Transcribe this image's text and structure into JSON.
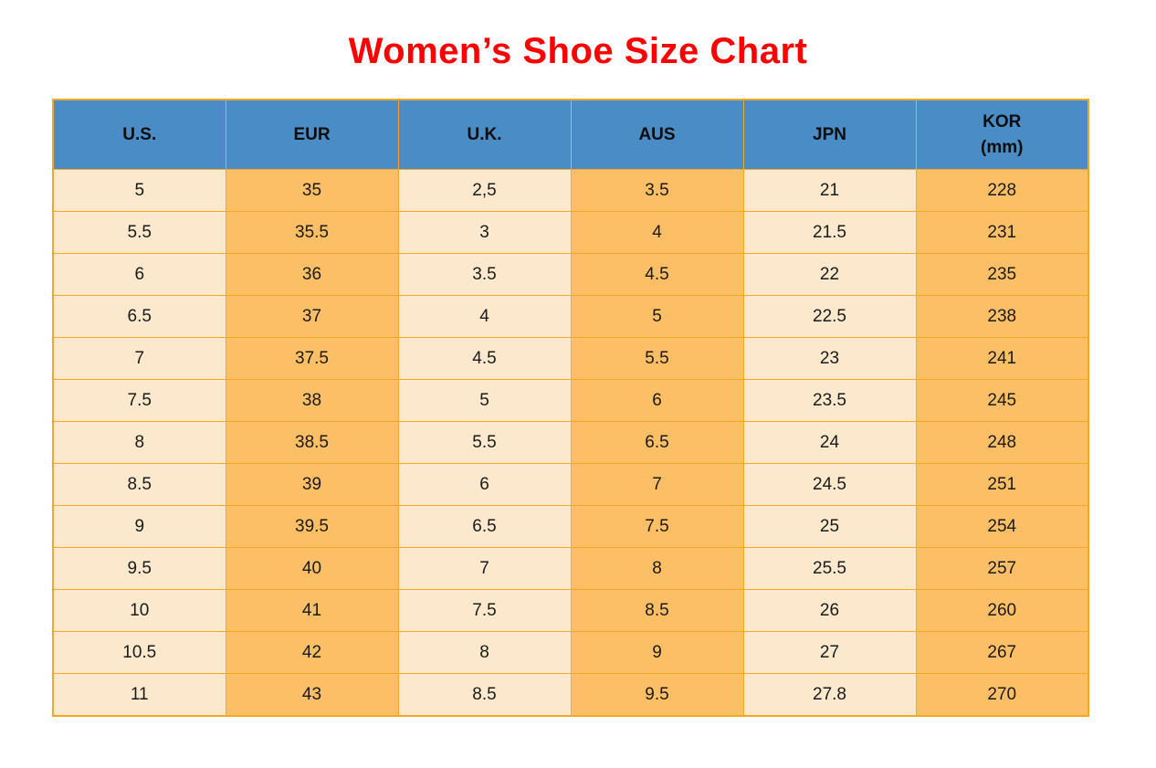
{
  "page": {
    "title": "Women’s Shoe Size Chart"
  },
  "colors": {
    "title_red": "#ff0000",
    "header_blue": "#4a8cc6",
    "column_light_fill": "#fce9cd",
    "column_orange_fill": "#fdbf66",
    "grid_border_orange": "#f5a823",
    "cell_text": "#1a1a1a"
  },
  "chart_data": {
    "type": "table",
    "title": "Women’s Shoe Size Chart",
    "columns": [
      "U.S.",
      "EUR",
      "U.K.",
      "AUS",
      "JPN",
      "KOR\n(mm)"
    ],
    "rows": [
      [
        "5",
        "35",
        "2,5",
        "3.5",
        "21",
        "228"
      ],
      [
        "5.5",
        "35.5",
        "3",
        "4",
        "21.5",
        "231"
      ],
      [
        "6",
        "36",
        "3.5",
        "4.5",
        "22",
        "235"
      ],
      [
        "6.5",
        "37",
        "4",
        "5",
        "22.5",
        "238"
      ],
      [
        "7",
        "37.5",
        "4.5",
        "5.5",
        "23",
        "241"
      ],
      [
        "7.5",
        "38",
        "5",
        "6",
        "23.5",
        "245"
      ],
      [
        "8",
        "38.5",
        "5.5",
        "6.5",
        "24",
        "248"
      ],
      [
        "8.5",
        "39",
        "6",
        "7",
        "24.5",
        "251"
      ],
      [
        "9",
        "39.5",
        "6.5",
        "7.5",
        "25",
        "254"
      ],
      [
        "9.5",
        "40",
        "7",
        "8",
        "25.5",
        "257"
      ],
      [
        "10",
        "41",
        "7.5",
        "8.5",
        "26",
        "260"
      ],
      [
        "10.5",
        "42",
        "8",
        "9",
        "27",
        "267"
      ],
      [
        "11",
        "43",
        "8.5",
        "9.5",
        "27.8",
        "270"
      ]
    ],
    "layout": {
      "column_fill_pattern": [
        "light",
        "orange",
        "light",
        "orange",
        "light",
        "orange"
      ],
      "header_fill": "blue",
      "grid": true,
      "cell_alignment": "center"
    }
  }
}
